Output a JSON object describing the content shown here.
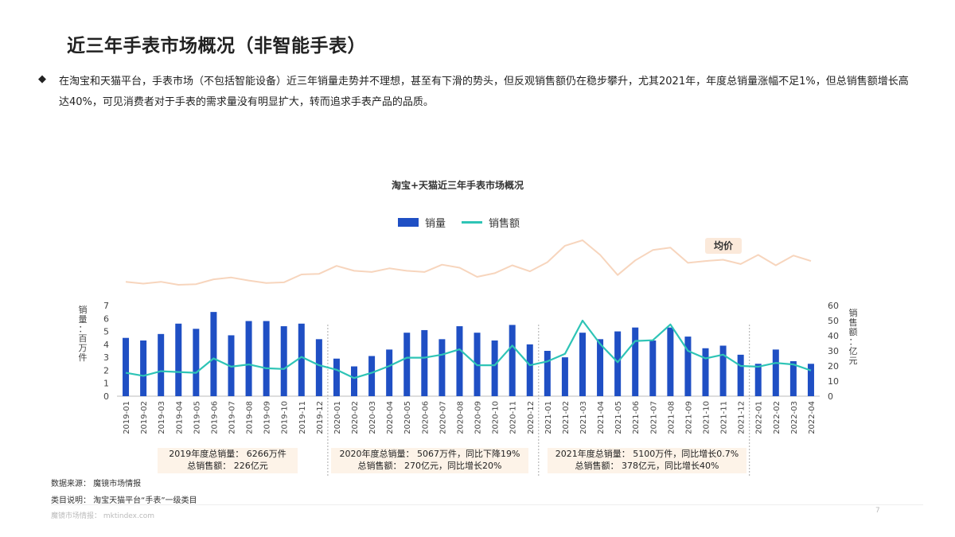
{
  "page": {
    "title": "近三年手表市场概况（非智能手表）",
    "bullet_icon": "◆",
    "description": "在淘宝和天猫平台，手表市场（不包括智能设备）近三年销量走势并不理想，甚至有下滑的势头，但反观销售额仍在稳步攀升，尤其2021年，年度总销量涨幅不足1%，但总销售额增长高达40%，可见消费者对于手表的需求量没有明显扩大，转而追求手表产品的品质。",
    "source": "数据来源：  魔镜市场情报",
    "category_note": "类目说明：  淘宝天猫平台“手表”一级类目",
    "watermark": "魔镜市场情报：  mktindex.com",
    "page_number": "7"
  },
  "colors": {
    "bar": "#1f4fc4",
    "line": "#2ec4b6",
    "avg_line": "#f7d5bd",
    "avg_label_bg": "#fbe9da"
  },
  "chart_data": {
    "type": "bar",
    "title": "淘宝+天猫近三年手表市场概况",
    "legend": [
      "销量",
      "销售额"
    ],
    "legend_position": "top-center",
    "ylabel_left": "销量：百万件",
    "ylabel_right": "销售额：亿元",
    "ylim_left": [
      0,
      7
    ],
    "yticks_left": [
      "0",
      "1",
      "2",
      "3",
      "4",
      "5",
      "6",
      "7"
    ],
    "ylim_right": [
      0,
      60
    ],
    "yticks_right": [
      "0",
      "10",
      "20",
      "30",
      "40",
      "50",
      "60"
    ],
    "categories": [
      "2019-01",
      "2019-02",
      "2019-03",
      "2019-04",
      "2019-05",
      "2019-06",
      "2019-07",
      "2019-08",
      "2019-09",
      "2019-10",
      "2019-11",
      "2019-12",
      "2020-01",
      "2020-02",
      "2020-03",
      "2020-04",
      "2020-05",
      "2020-06",
      "2020-07",
      "2020-08",
      "2020-09",
      "2020-10",
      "2020-11",
      "2020-12",
      "2021-01",
      "2021-02",
      "2021-03",
      "2021-04",
      "2021-05",
      "2021-06",
      "2021-07",
      "2021-08",
      "2021-09",
      "2021-10",
      "2021-11",
      "2021-12",
      "2022-01",
      "2022-02",
      "2022-03",
      "2022-04"
    ],
    "series": [
      {
        "name": "销量",
        "type": "bar",
        "values": [
          4.5,
          4.3,
          4.8,
          5.6,
          5.2,
          6.5,
          4.7,
          5.8,
          5.8,
          5.4,
          5.6,
          4.4,
          2.9,
          2.3,
          3.1,
          3.6,
          4.9,
          5.1,
          4.4,
          5.4,
          4.9,
          4.3,
          5.5,
          4.0,
          3.5,
          3.0,
          4.9,
          4.4,
          5.0,
          5.3,
          4.3,
          5.3,
          4.6,
          3.7,
          3.9,
          3.2,
          2.5,
          3.6,
          2.7,
          2.5
        ]
      },
      {
        "name": "销售额",
        "type": "line",
        "values": [
          15.5,
          13.5,
          16.5,
          16.0,
          15.5,
          25.0,
          19.5,
          21.0,
          18.5,
          18.0,
          26.0,
          20.5,
          17.5,
          12.0,
          15.5,
          20.0,
          25.5,
          25.5,
          27.5,
          31.0,
          20.5,
          20.5,
          33.5,
          20.5,
          23.0,
          28.0,
          50.0,
          34.5,
          22.5,
          36.5,
          37.0,
          47.5,
          30.0,
          25.0,
          27.5,
          20.0,
          19.5,
          22.0,
          21.0,
          17.0
        ]
      },
      {
        "name": "均价",
        "type": "line",
        "label": "均价",
        "values": [
          3.4,
          3.1,
          3.4,
          2.9,
          3.0,
          3.8,
          4.1,
          3.6,
          3.2,
          3.3,
          4.6,
          4.7,
          6.0,
          5.2,
          5.0,
          5.6,
          5.2,
          5.0,
          6.2,
          5.7,
          4.2,
          4.8,
          6.1,
          5.1,
          6.6,
          9.3,
          10.2,
          7.8,
          4.5,
          6.9,
          8.6,
          9.0,
          6.5,
          6.8,
          7.0,
          6.3,
          7.8,
          6.1,
          7.7,
          6.8
        ]
      }
    ],
    "annotations": [
      {
        "line1": "2019年度总销量：  6266万件",
        "line2": "总销售额：  226亿元"
      },
      {
        "line1": "2020年度总销量：  5067万件，同比下降19%",
        "line2": "总销售额：  270亿元，同比增长20%"
      },
      {
        "line1": "2021年度总销量：  5100万件，同比增长0.7%",
        "line2": "总销售额：  378亿元，同比增长40%"
      }
    ]
  }
}
